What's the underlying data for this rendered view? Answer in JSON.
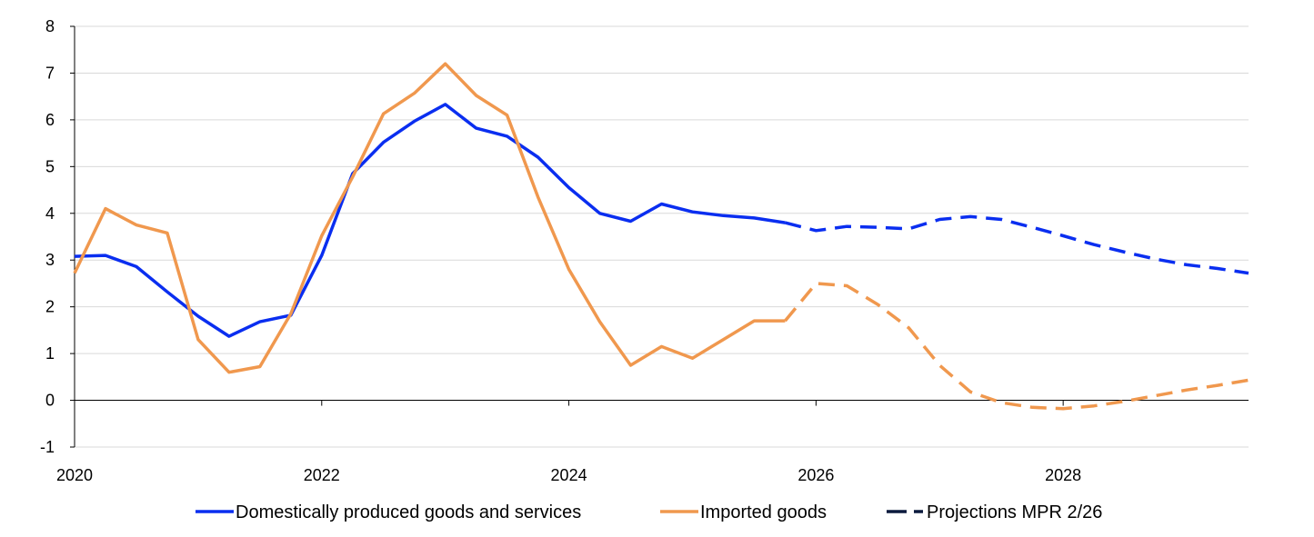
{
  "chart_data": {
    "type": "line",
    "title": "",
    "xlabel": "",
    "ylabel": "",
    "xlim": [
      2020,
      2029.5
    ],
    "ylim": [
      -1,
      8
    ],
    "y_ticks": [
      -1,
      0,
      1,
      2,
      3,
      4,
      5,
      6,
      7,
      8
    ],
    "y_tick_labels": [
      "-1",
      "0",
      "1",
      "2",
      "3",
      "4",
      "5",
      "6",
      "7",
      "8"
    ],
    "x_ticks": [
      2020,
      2022,
      2024,
      2026,
      2028
    ],
    "x_tick_labels": [
      "2020",
      "2022",
      "2024",
      "2026",
      "2028"
    ],
    "grid": true,
    "legend_position": "bottom",
    "colors": {
      "domestic": "#0a2ef0",
      "imported": "#f0984e",
      "projection_legend": "#0b1a3d",
      "grid": "#d9d9d9",
      "axis": "#000000"
    },
    "projection_start": 2025.75,
    "series": [
      {
        "name": "Domestically produced goods and services",
        "color_key": "domestic",
        "x": [
          2020,
          2020.25,
          2020.5,
          2020.75,
          2021,
          2021.25,
          2021.5,
          2021.75,
          2022,
          2022.25,
          2022.5,
          2022.75,
          2023,
          2023.25,
          2023.5,
          2023.75,
          2024,
          2024.25,
          2024.5,
          2024.75,
          2025,
          2025.25,
          2025.5,
          2025.75,
          2026,
          2026.25,
          2026.5,
          2026.75,
          2027,
          2027.25,
          2027.5,
          2027.75,
          2028,
          2028.25,
          2028.5,
          2028.75,
          2029,
          2029.25,
          2029.5
        ],
        "values": [
          3.08,
          3.1,
          2.86,
          2.32,
          1.8,
          1.37,
          1.68,
          1.82,
          3.1,
          4.85,
          5.52,
          5.97,
          6.33,
          5.82,
          5.65,
          5.2,
          4.55,
          4.0,
          3.83,
          4.2,
          4.03,
          3.95,
          3.9,
          3.8,
          3.63,
          3.72,
          3.7,
          3.67,
          3.87,
          3.93,
          3.87,
          3.7,
          3.52,
          3.33,
          3.17,
          3.02,
          2.9,
          2.82,
          2.72
        ]
      },
      {
        "name": "Imported goods",
        "color_key": "imported",
        "x": [
          2020,
          2020.25,
          2020.5,
          2020.75,
          2021,
          2021.25,
          2021.5,
          2021.75,
          2022,
          2022.25,
          2022.5,
          2022.75,
          2023,
          2023.25,
          2023.5,
          2023.75,
          2024,
          2024.25,
          2024.5,
          2024.75,
          2025,
          2025.25,
          2025.5,
          2025.75,
          2026,
          2026.25,
          2026.5,
          2026.75,
          2027,
          2027.25,
          2027.5,
          2027.75,
          2028,
          2028.25,
          2028.5,
          2028.75,
          2029,
          2029.25,
          2029.5
        ],
        "values": [
          2.72,
          4.1,
          3.75,
          3.58,
          1.3,
          0.6,
          0.72,
          1.85,
          3.52,
          4.78,
          6.13,
          6.57,
          7.2,
          6.52,
          6.1,
          4.35,
          2.8,
          1.68,
          0.75,
          1.15,
          0.9,
          1.3,
          1.7,
          1.7,
          2.5,
          2.45,
          2.05,
          1.55,
          0.75,
          0.18,
          -0.05,
          -0.15,
          -0.18,
          -0.12,
          -0.02,
          0.1,
          0.22,
          0.32,
          0.43
        ]
      }
    ],
    "legend": {
      "items": [
        {
          "label": "Domestically produced goods and services",
          "style": "solid",
          "color_key": "domestic"
        },
        {
          "label": "Imported goods",
          "style": "solid",
          "color_key": "imported"
        },
        {
          "label": "Projections MPR 2/26",
          "style": "dashed",
          "color_key": "projection_legend"
        }
      ]
    }
  }
}
